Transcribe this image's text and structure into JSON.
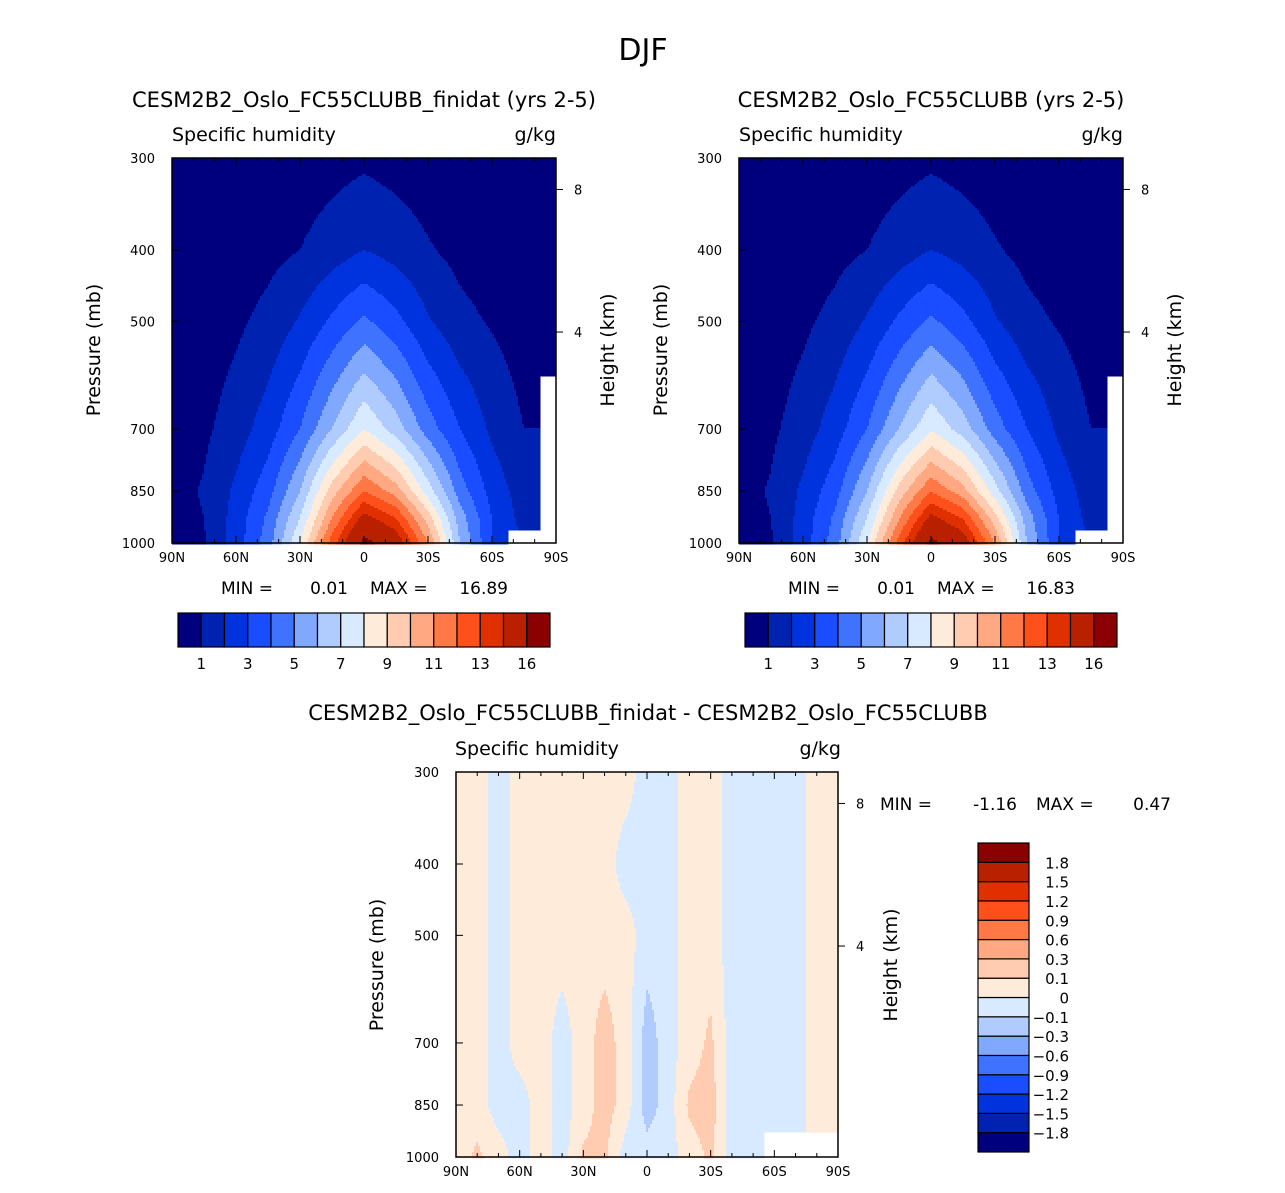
{
  "figure_title": "DJF",
  "colors": [
    "#00007f",
    "#0022b0",
    "#0033dd",
    "#1a4dff",
    "#3f73ff",
    "#80a8ff",
    "#b0ccff",
    "#d8eaff",
    "#ffebd9",
    "#ffcbb1",
    "#ffa882",
    "#ff7946",
    "#ff4f1a",
    "#e03000",
    "#b82000",
    "#8b0000"
  ],
  "chart_data": [
    {
      "type": "heatmap",
      "title": "CESM2B2_Oslo_FC55CLUBB_finidat (yrs 2-5)",
      "variable": "Specific humidity",
      "units": "g/kg",
      "ylabel": "Pressure (mb)",
      "ylabel_right": "Height (km)",
      "x_ticks": [
        "90N",
        "60N",
        "30N",
        "0",
        "30S",
        "60S",
        "90S"
      ],
      "xlim": [
        90,
        -90
      ],
      "y_ticks": [
        300,
        400,
        500,
        700,
        850,
        1000
      ],
      "ylim": [
        300,
        1000
      ],
      "height_ticks": [
        {
          "label": "8",
          "p": 331
        },
        {
          "label": "4",
          "p": 517
        }
      ],
      "min_label": "MIN =",
      "min": "0.01",
      "max_label": "MAX =",
      "max": "16.89",
      "levels": [
        1,
        2,
        3,
        4,
        5,
        6,
        7,
        8,
        9,
        10,
        11,
        12,
        13,
        14,
        16
      ],
      "colorbar_labels": [
        "1",
        null,
        "3",
        null,
        "5",
        null,
        "7",
        null,
        "9",
        null,
        "11",
        null,
        "13",
        null,
        "16"
      ],
      "grid": {
        "lats": [
          90,
          75,
          60,
          45,
          30,
          15,
          0,
          -15,
          -30,
          -45,
          -60,
          -75,
          -90
        ],
        "pressures": [
          300,
          400,
          500,
          700,
          850,
          925,
          1000
        ],
        "values": [
          [
            0.05,
            0.1,
            0.15,
            0.25,
            0.4,
            0.6,
            0.8,
            0.6,
            0.4,
            0.25,
            0.15,
            0.1,
            0.05
          ],
          [
            0.1,
            0.2,
            0.4,
            0.7,
            1.0,
            1.5,
            2.0,
            1.6,
            1.1,
            0.7,
            0.4,
            0.2,
            0.1
          ],
          [
            0.2,
            0.4,
            0.8,
            1.3,
            2.1,
            3.2,
            4.2,
            3.3,
            2.1,
            1.3,
            0.9,
            0.5,
            0.2
          ],
          [
            0.4,
            0.8,
            1.5,
            2.5,
            4,
            6,
            8,
            6.5,
            4.5,
            3,
            1.8,
            1.0,
            null
          ],
          [
            0.6,
            1.1,
            2.2,
            3.6,
            6,
            9.5,
            12,
            10.5,
            7.5,
            4.5,
            2.6,
            1.5,
            null
          ],
          [
            0.6,
            1.0,
            2.4,
            4.2,
            7,
            11,
            14.5,
            13,
            9.5,
            5.5,
            3,
            1.6,
            null
          ],
          [
            0.5,
            0.9,
            2.5,
            4.5,
            8,
            12.5,
            16.5,
            15,
            11,
            6,
            3,
            null,
            null
          ]
        ]
      }
    },
    {
      "type": "heatmap",
      "title": "CESM2B2_Oslo_FC55CLUBB (yrs 2-5)",
      "variable": "Specific humidity",
      "units": "g/kg",
      "ylabel": "Pressure (mb)",
      "ylabel_right": "Height (km)",
      "x_ticks": [
        "90N",
        "60N",
        "30N",
        "0",
        "30S",
        "60S",
        "90S"
      ],
      "xlim": [
        90,
        -90
      ],
      "y_ticks": [
        300,
        400,
        500,
        700,
        850,
        1000
      ],
      "ylim": [
        300,
        1000
      ],
      "height_ticks": [
        {
          "label": "8",
          "p": 331
        },
        {
          "label": "4",
          "p": 517
        }
      ],
      "min_label": "MIN =",
      "min": "0.01",
      "max_label": "MAX =",
      "max": "16.83",
      "levels": [
        1,
        2,
        3,
        4,
        5,
        6,
        7,
        8,
        9,
        10,
        11,
        12,
        13,
        14,
        16
      ],
      "colorbar_labels": [
        "1",
        null,
        "3",
        null,
        "5",
        null,
        "7",
        null,
        "9",
        null,
        "11",
        null,
        "13",
        null,
        "16"
      ],
      "grid": {
        "lats": [
          90,
          75,
          60,
          45,
          30,
          15,
          0,
          -15,
          -30,
          -45,
          -60,
          -75,
          -90
        ],
        "pressures": [
          300,
          400,
          500,
          700,
          850,
          925,
          1000
        ],
        "values": [
          [
            0.05,
            0.1,
            0.15,
            0.25,
            0.4,
            0.6,
            0.8,
            0.6,
            0.4,
            0.25,
            0.15,
            0.1,
            0.05
          ],
          [
            0.1,
            0.2,
            0.4,
            0.7,
            1.0,
            1.5,
            2.0,
            1.6,
            1.1,
            0.7,
            0.4,
            0.2,
            0.1
          ],
          [
            0.2,
            0.4,
            0.8,
            1.3,
            2.1,
            3.2,
            4.2,
            3.3,
            2.1,
            1.3,
            0.9,
            0.5,
            0.2
          ],
          [
            0.4,
            0.8,
            1.5,
            2.5,
            4,
            6,
            7.9,
            6.5,
            4.5,
            3,
            1.8,
            1.0,
            null
          ],
          [
            0.6,
            1.1,
            2.2,
            3.6,
            6,
            9.4,
            11.9,
            10.4,
            7.4,
            4.5,
            2.6,
            1.5,
            null
          ],
          [
            0.6,
            1.0,
            2.4,
            4.2,
            7,
            10.9,
            14.4,
            12.9,
            9.4,
            5.5,
            3,
            1.6,
            null
          ],
          [
            0.5,
            0.9,
            2.5,
            4.5,
            8,
            12.4,
            16.4,
            14.9,
            10.9,
            6,
            3,
            null,
            null
          ]
        ]
      }
    },
    {
      "type": "heatmap",
      "title": "CESM2B2_Oslo_FC55CLUBB_finidat - CESM2B2_Oslo_FC55CLUBB",
      "variable": "Specific humidity",
      "units": "g/kg",
      "ylabel": "Pressure (mb)",
      "ylabel_right": "Height (km)",
      "x_ticks": [
        "90N",
        "60N",
        "30N",
        "0",
        "30S",
        "60S",
        "90S"
      ],
      "xlim": [
        90,
        -90
      ],
      "y_ticks": [
        300,
        400,
        500,
        700,
        850,
        1000
      ],
      "ylim": [
        300,
        1000
      ],
      "height_ticks": [
        {
          "label": "8",
          "p": 331
        },
        {
          "label": "4",
          "p": 517
        }
      ],
      "min_label": "MIN =",
      "min": "-1.16",
      "max_label": "MAX =",
      "max": "0.47",
      "levels": [
        -1.8,
        -1.5,
        -1.2,
        -0.9,
        -0.6,
        -0.3,
        -0.1,
        0,
        0.1,
        0.3,
        0.6,
        0.9,
        1.2,
        1.5,
        1.8
      ],
      "colorbar_labels": [
        "-1.8",
        "-1.5",
        "-1.2",
        "-0.9",
        "-0.6",
        "-0.3",
        "-0.1",
        "0",
        "0.1",
        "0.3",
        "0.6",
        "0.9",
        "1.2",
        "1.5",
        "1.8"
      ],
      "grid": {
        "lats": [
          90,
          80,
          70,
          60,
          50,
          40,
          30,
          20,
          10,
          0,
          -10,
          -20,
          -30,
          -40,
          -50,
          -60,
          -70,
          -80,
          -90
        ],
        "pressures": [
          300,
          400,
          500,
          700,
          850,
          1000
        ],
        "values": [
          [
            0.05,
            0.05,
            -0.05,
            0.05,
            0.05,
            0.05,
            0.05,
            0.05,
            0.05,
            -0.05,
            -0.05,
            0.05,
            0.05,
            -0.05,
            -0.05,
            -0.05,
            -0.05,
            0.05,
            0.05
          ],
          [
            0.05,
            0.05,
            -0.05,
            0.05,
            0.05,
            0.05,
            0.05,
            0.05,
            -0.05,
            -0.05,
            -0.05,
            0.05,
            0.05,
            -0.05,
            -0.05,
            -0.05,
            -0.05,
            0.05,
            0.05
          ],
          [
            0.05,
            0.05,
            -0.05,
            0.05,
            0.05,
            0.05,
            0.05,
            0.05,
            0.05,
            -0.05,
            -0.05,
            0.05,
            0.05,
            -0.05,
            -0.05,
            -0.05,
            -0.05,
            0.05,
            0.05
          ],
          [
            0.05,
            0.05,
            -0.05,
            0.05,
            0.05,
            -0.05,
            0.05,
            0.15,
            0.05,
            -0.15,
            -0.05,
            0.05,
            0.12,
            -0.05,
            -0.05,
            -0.05,
            -0.05,
            0.05,
            0.05
          ],
          [
            0.05,
            0.05,
            -0.05,
            -0.05,
            0.05,
            -0.05,
            0.05,
            0.15,
            0.05,
            -0.15,
            -0.05,
            0.12,
            0.15,
            -0.05,
            -0.05,
            -0.05,
            -0.05,
            0.05,
            0.05
          ],
          [
            0.05,
            0.12,
            0.05,
            -0.05,
            0.05,
            -0.05,
            0.12,
            0.12,
            -0.05,
            -0.05,
            -0.05,
            0.05,
            0.12,
            -0.05,
            -0.05,
            null,
            null,
            null,
            null
          ]
        ]
      }
    }
  ]
}
